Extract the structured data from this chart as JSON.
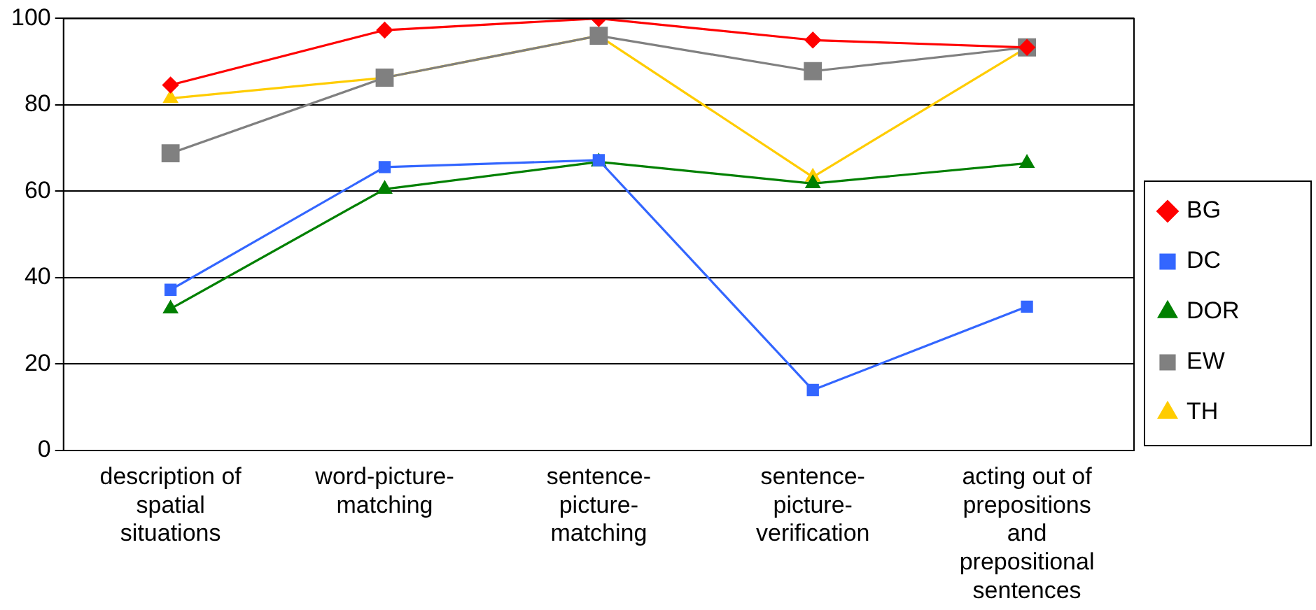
{
  "chart_data": {
    "type": "line",
    "categories": [
      "description of\nspatial\nsituations",
      "word-picture-\nmatching",
      "sentence-\npicture-\nmatching",
      "sentence-\npicture-\nverification",
      "acting out of\nprepositions\nand\nprepositional\nsentences"
    ],
    "series": [
      {
        "name": "BG",
        "color": "#ff0000",
        "marker": "diamond",
        "values": [
          84.6,
          97.3,
          100,
          95,
          93.3
        ]
      },
      {
        "name": "DC",
        "color": "#3366ff",
        "marker": "square",
        "values": [
          37.2,
          65.6,
          67.2,
          14,
          33.3
        ]
      },
      {
        "name": "DOR",
        "color": "#008000",
        "marker": "triangle",
        "values": [
          32.8,
          60.5,
          66.8,
          61.8,
          66.5
        ]
      },
      {
        "name": "EW",
        "color": "#808080",
        "marker": "square",
        "values": [
          68.8,
          86.3,
          96,
          87.8,
          93.3
        ]
      },
      {
        "name": "TH",
        "color": "#ffcc00",
        "marker": "triangle",
        "values": [
          81.5,
          86.3,
          96,
          63.3,
          93.3
        ]
      }
    ],
    "ylim": [
      0,
      100
    ],
    "yticks": [
      0,
      20,
      40,
      60,
      80,
      100
    ],
    "grid": "y",
    "legend": "right",
    "line_style": "solid"
  }
}
